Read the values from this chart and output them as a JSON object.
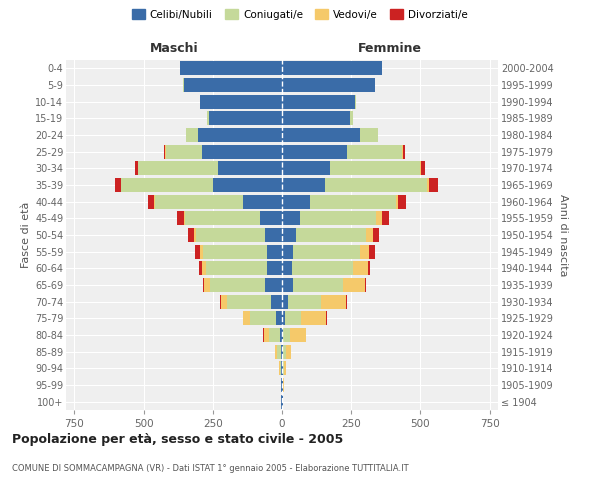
{
  "age_groups": [
    "100+",
    "95-99",
    "90-94",
    "85-89",
    "80-84",
    "75-79",
    "70-74",
    "65-69",
    "60-64",
    "55-59",
    "50-54",
    "45-49",
    "40-44",
    "35-39",
    "30-34",
    "25-29",
    "20-24",
    "15-19",
    "10-14",
    "5-9",
    "0-4"
  ],
  "birth_years": [
    "≤ 1904",
    "1905-1909",
    "1910-1914",
    "1915-1919",
    "1920-1924",
    "1925-1929",
    "1930-1934",
    "1935-1939",
    "1940-1944",
    "1945-1949",
    "1950-1954",
    "1955-1959",
    "1960-1964",
    "1965-1969",
    "1970-1974",
    "1975-1979",
    "1980-1984",
    "1985-1989",
    "1990-1994",
    "1995-1999",
    "2000-2004"
  ],
  "males": {
    "celibi": [
      2,
      2,
      3,
      4,
      6,
      20,
      40,
      60,
      55,
      55,
      60,
      80,
      140,
      250,
      230,
      290,
      305,
      265,
      295,
      355,
      370
    ],
    "coniugati": [
      1,
      2,
      5,
      15,
      40,
      95,
      160,
      200,
      220,
      230,
      250,
      270,
      320,
      330,
      290,
      130,
      40,
      5,
      2,
      1,
      0
    ],
    "vedovi": [
      0,
      1,
      2,
      8,
      20,
      25,
      20,
      20,
      15,
      10,
      8,
      5,
      3,
      2,
      1,
      1,
      0,
      0,
      0,
      0,
      0
    ],
    "divorziati": [
      0,
      0,
      0,
      0,
      1,
      2,
      3,
      4,
      8,
      18,
      22,
      25,
      20,
      20,
      10,
      5,
      1,
      0,
      0,
      0,
      0
    ]
  },
  "females": {
    "nubili": [
      2,
      2,
      3,
      4,
      5,
      10,
      20,
      40,
      35,
      40,
      50,
      65,
      100,
      155,
      175,
      235,
      280,
      245,
      265,
      335,
      360
    ],
    "coniugate": [
      1,
      2,
      5,
      10,
      25,
      60,
      120,
      180,
      220,
      240,
      255,
      275,
      310,
      370,
      325,
      200,
      65,
      10,
      2,
      1,
      0
    ],
    "vedove": [
      0,
      2,
      5,
      20,
      55,
      90,
      90,
      80,
      55,
      35,
      25,
      20,
      10,
      5,
      3,
      2,
      1,
      0,
      0,
      0,
      0
    ],
    "divorziate": [
      0,
      0,
      0,
      0,
      1,
      2,
      3,
      4,
      8,
      20,
      22,
      25,
      28,
      35,
      15,
      8,
      2,
      0,
      0,
      0,
      0
    ]
  },
  "colors": {
    "celibi_nubili": "#3a6ca8",
    "coniugati": "#c5d99a",
    "vedovi": "#f5c96a",
    "divorziati": "#cc2222"
  },
  "xlim": 780,
  "title": "Popolazione per età, sesso e stato civile - 2005",
  "subtitle": "COMUNE DI SOMMACAMPAGNA (VR) - Dati ISTAT 1° gennaio 2005 - Elaborazione TUTTITALIA.IT",
  "xlabel_left": "Maschi",
  "xlabel_right": "Femmine",
  "ylabel_left": "Fasce di età",
  "ylabel_right": "Anni di nascita",
  "legend_labels": [
    "Celibi/Nubili",
    "Coniugati/e",
    "Vedovi/e",
    "Divorziati/e"
  ],
  "bg_color": "#ffffff",
  "plot_bg_color": "#efefef"
}
